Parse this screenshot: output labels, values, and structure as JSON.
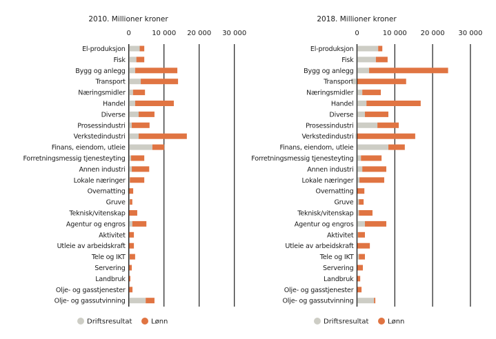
{
  "colors": {
    "driftsresultat": "#cdcdc5",
    "lonn": "#e07442",
    "axis": "#1a1a1a"
  },
  "legend": [
    {
      "name": "Driftsresultat",
      "color": "#cdcdc5"
    },
    {
      "name": "Lønn",
      "color": "#e07442"
    }
  ],
  "chart_data": [
    {
      "type": "bar",
      "orientation": "horizontal",
      "stacked": true,
      "title": "2010. Millioner kroner",
      "xlabel": "",
      "ylabel": "",
      "xlim": [
        0,
        30000
      ],
      "xticks": [
        0,
        10000,
        20000,
        30000
      ],
      "xtick_labels": [
        "0",
        "10 000",
        "20 000",
        "30 000"
      ],
      "grid": "vertical lines at ticks",
      "legend_placement": "bottom",
      "categories": [
        "El-produksjon",
        "Fisk",
        "Bygg og anlegg",
        "Transport",
        "Næringsmidler",
        "Handel",
        "Diverse",
        "Prosessindustri",
        "Verkstedindustri",
        "Finans, eiendom, utleie",
        "Forretningsmessig tjenesteyting",
        "Annen industri",
        "Lokale næringer",
        "Overnatting",
        "Gruve",
        "Teknisk/vitenskap",
        "Agentur og engros",
        "Aktivitet",
        "Utleie av arbeidskraft",
        "Tele og IKT",
        "Servering",
        "Landbruk",
        "Olje- og gasstjenester",
        "Olje- og gassutvinning"
      ],
      "series": [
        {
          "name": "Driftsresultat",
          "values": [
            3100,
            2150,
            1800,
            3400,
            1200,
            1800,
            2800,
            850,
            2800,
            6700,
            650,
            850,
            300,
            -300,
            300,
            0,
            1000,
            0,
            0,
            250,
            0,
            0,
            0,
            4800
          ]
        },
        {
          "name": "Lønn",
          "values": [
            1300,
            2250,
            12000,
            10600,
            3400,
            11000,
            4500,
            5050,
            13700,
            3350,
            3750,
            4950,
            4100,
            1250,
            700,
            2400,
            4000,
            1450,
            1450,
            1550,
            850,
            450,
            1050,
            2500
          ]
        }
      ]
    },
    {
      "type": "bar",
      "orientation": "horizontal",
      "stacked": true,
      "title": "2018. Millioner kroner",
      "xlabel": "",
      "ylabel": "",
      "xlim": [
        0,
        30000
      ],
      "xticks": [
        0,
        10000,
        20000,
        30000
      ],
      "xtick_labels": [
        "0",
        "10 000",
        "20 000",
        "30 000"
      ],
      "grid": "vertical lines at ticks",
      "legend_placement": "bottom",
      "categories": [
        "El-produksjon",
        "Fisk",
        "Bygg og anlegg",
        "Transport",
        "Næringsmidler",
        "Handel",
        "Diverse",
        "Prosessindustri",
        "Verkstedindustri",
        "Finans, eiendom, utleie",
        "Forretningsmessig tjenesteyting",
        "Annen industri",
        "Lokale næringer",
        "Overnatting",
        "Gruve",
        "Teknisk/vitenskap",
        "Agentur og engros",
        "Aktivitet",
        "Utleie av arbeidskraft",
        "Tele og IKT",
        "Servering",
        "Landbruk",
        "Olje- og gasstjenester",
        "Olje- og gassutvinning"
      ],
      "series": [
        {
          "name": "Driftsresultat",
          "values": [
            5600,
            5000,
            3200,
            -1150,
            1400,
            2500,
            2100,
            5400,
            -400,
            8300,
            1050,
            1400,
            650,
            0,
            500,
            500,
            2100,
            250,
            0,
            500,
            0,
            0,
            0,
            4500
          ]
        },
        {
          "name": "Lønn",
          "values": [
            1100,
            3100,
            20900,
            13000,
            4900,
            14350,
            6200,
            5650,
            15400,
            4350,
            5450,
            6350,
            6550,
            1950,
            1250,
            3600,
            5650,
            1850,
            3400,
            1600,
            1550,
            850,
            1200,
            350
          ]
        }
      ]
    }
  ]
}
